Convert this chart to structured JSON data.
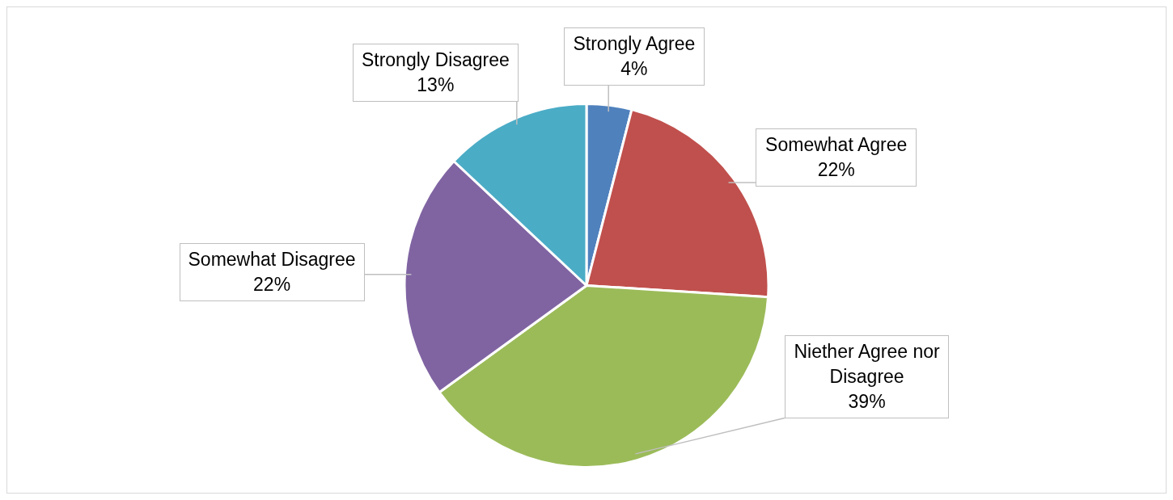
{
  "chart_data": {
    "type": "pie",
    "categories": [
      "Strongly Agree",
      "Somewhat Agree",
      "Niether Agree nor Disagree",
      "Somewhat Disagree",
      "Strongly Disagree"
    ],
    "values": [
      4,
      22,
      39,
      22,
      13
    ],
    "value_labels": [
      "4%",
      "22%",
      "39%",
      "22%",
      "13%"
    ],
    "colors": [
      "#4f81bd",
      "#c0504d",
      "#9bbb59",
      "#8064a2",
      "#4bacc6"
    ],
    "legend": false
  }
}
